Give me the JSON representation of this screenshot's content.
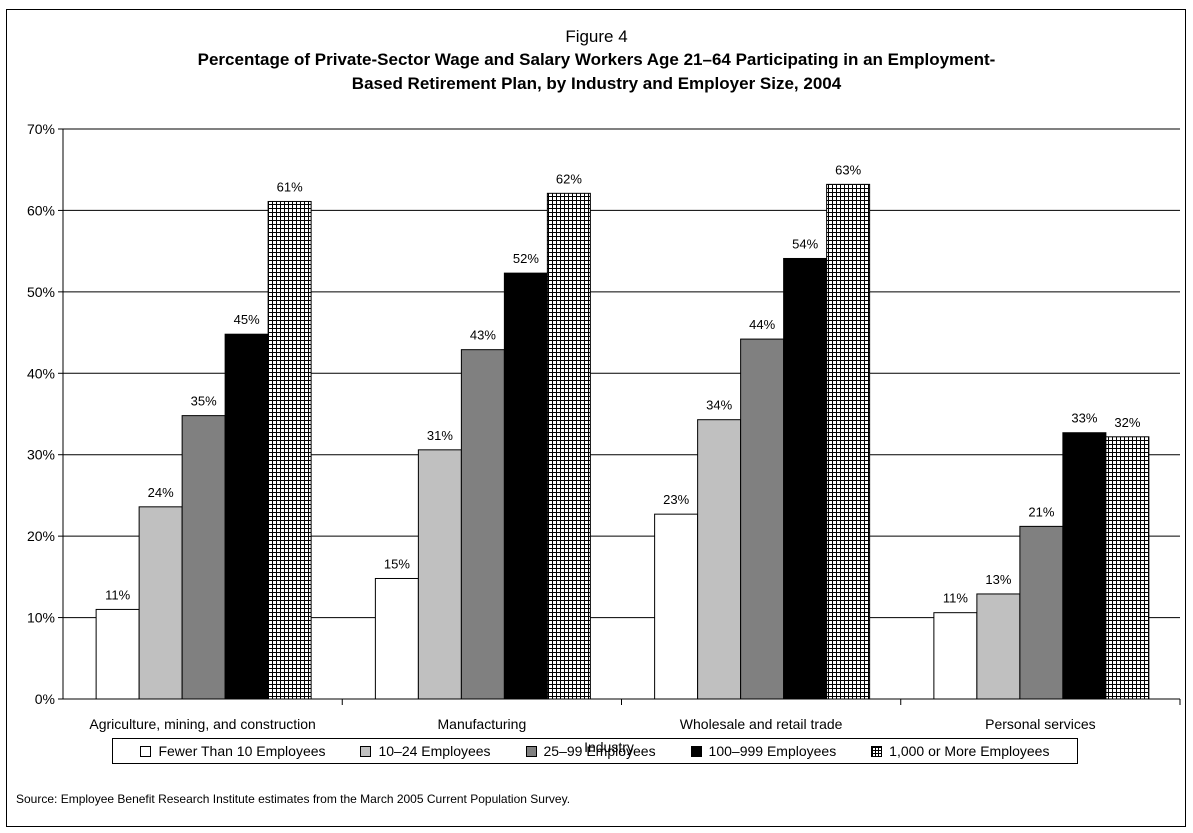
{
  "figure_label": "Figure 4",
  "title_lines": [
    "Percentage of Private-Sector Wage and Salary Workers Age 21–64 Participating in an Employment-",
    "Based Retirement Plan, by Industry and Employer Size, 2004"
  ],
  "source": "Source: Employee Benefit Research Institute estimates from the March 2005 Current Population Survey.",
  "chart_data": {
    "type": "bar",
    "title": "Percentage of Private-Sector Wage and Salary Workers Age 21–64 Participating in an Employment-Based Retirement Plan, by Industry and Employer Size, 2004",
    "xlabel": "Industry",
    "ylabel": "",
    "ylim": [
      0,
      70
    ],
    "yticks": [
      "0%",
      "10%",
      "20%",
      "30%",
      "40%",
      "50%",
      "60%",
      "70%"
    ],
    "grid": true,
    "legend_position": "bottom",
    "categories": [
      "Agriculture, mining, and construction",
      "Manufacturing",
      "Wholesale and retail trade",
      "Personal services"
    ],
    "series": [
      {
        "name": "Fewer Than 10 Employees",
        "fill": "#ffffff",
        "pattern": "solid",
        "values": [
          11,
          14.8,
          22.7,
          10.6
        ],
        "labels": [
          "11%",
          "15%",
          "23%",
          "11%"
        ]
      },
      {
        "name": "10–24 Employees",
        "fill": "#c0c0c0",
        "pattern": "solid",
        "values": [
          23.6,
          30.6,
          34.3,
          12.9
        ],
        "labels": [
          "24%",
          "31%",
          "34%",
          "13%"
        ]
      },
      {
        "name": "25–99 Employees",
        "fill": "#808080",
        "pattern": "solid",
        "values": [
          34.8,
          42.9,
          44.2,
          21.2
        ],
        "labels": [
          "35%",
          "43%",
          "44%",
          "21%"
        ]
      },
      {
        "name": "100–999 Employees",
        "fill": "#000000",
        "pattern": "solid",
        "values": [
          44.8,
          52.3,
          54.1,
          32.7
        ],
        "labels": [
          "45%",
          "52%",
          "54%",
          "33%"
        ]
      },
      {
        "name": "1,000 or More Employees",
        "fill": "#ffffff",
        "pattern": "grid",
        "values": [
          61.1,
          62.1,
          63.2,
          32.2
        ],
        "labels": [
          "61%",
          "62%",
          "63%",
          "32%"
        ]
      }
    ]
  }
}
